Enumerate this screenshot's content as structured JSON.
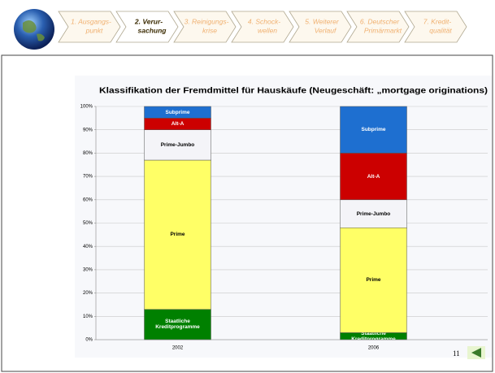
{
  "nav": {
    "items": [
      {
        "lines": [
          "1. Ausgangs-",
          "punkt"
        ]
      },
      {
        "lines": [
          "2. Verur-",
          "sachung"
        ]
      },
      {
        "lines": [
          "3. Reinigungs-",
          "krise"
        ]
      },
      {
        "lines": [
          "4. Schock-",
          "wellen"
        ]
      },
      {
        "lines": [
          "5. Weiterer",
          "Verlauf"
        ]
      },
      {
        "lines": [
          "6. Deutscher",
          "Primärmarkt"
        ]
      },
      {
        "lines": [
          "7. Kredit-",
          "qualität"
        ]
      }
    ],
    "active": 1
  },
  "page_number": "11",
  "chart_data": {
    "type": "stacked_bar",
    "title": "Klassifikation der Fremdmittel für Hauskäufe (Neugeschäft: „mortgage originations)",
    "categories": [
      "2002",
      "2006"
    ],
    "series": [
      {
        "name": "Staatliche Kreditprogramme",
        "color": "#008000",
        "text_color": "#ffffff",
        "values": [
          13,
          3
        ]
      },
      {
        "name": "Prime",
        "color": "#ffff66",
        "text_color": "#000000",
        "values": [
          64,
          45
        ]
      },
      {
        "name": "Prime-Jumbo",
        "color": "#f4f4f8",
        "text_color": "#000000",
        "values": [
          13,
          12
        ]
      },
      {
        "name": "Alt-A",
        "color": "#cc0000",
        "text_color": "#ffffff",
        "values": [
          5,
          20
        ]
      },
      {
        "name": "Subprime",
        "color": "#1e6fd0",
        "text_color": "#ffffff",
        "values": [
          5,
          20
        ]
      }
    ],
    "ylim": [
      0,
      100
    ],
    "yticks": [
      {
        "value": 0,
        "label": "0%"
      },
      {
        "value": 10,
        "label": "10%"
      },
      {
        "value": 20,
        "label": "20%"
      },
      {
        "value": 30,
        "label": "30%"
      },
      {
        "value": 40,
        "label": "40%"
      },
      {
        "value": 50,
        "label": "50%"
      },
      {
        "value": 60,
        "label": "60%"
      },
      {
        "value": 70,
        "label": "70%"
      },
      {
        "value": 80,
        "label": "80%"
      },
      {
        "value": 90,
        "label": "90%"
      },
      {
        "value": 100,
        "label": "100%"
      }
    ],
    "grid": true
  }
}
